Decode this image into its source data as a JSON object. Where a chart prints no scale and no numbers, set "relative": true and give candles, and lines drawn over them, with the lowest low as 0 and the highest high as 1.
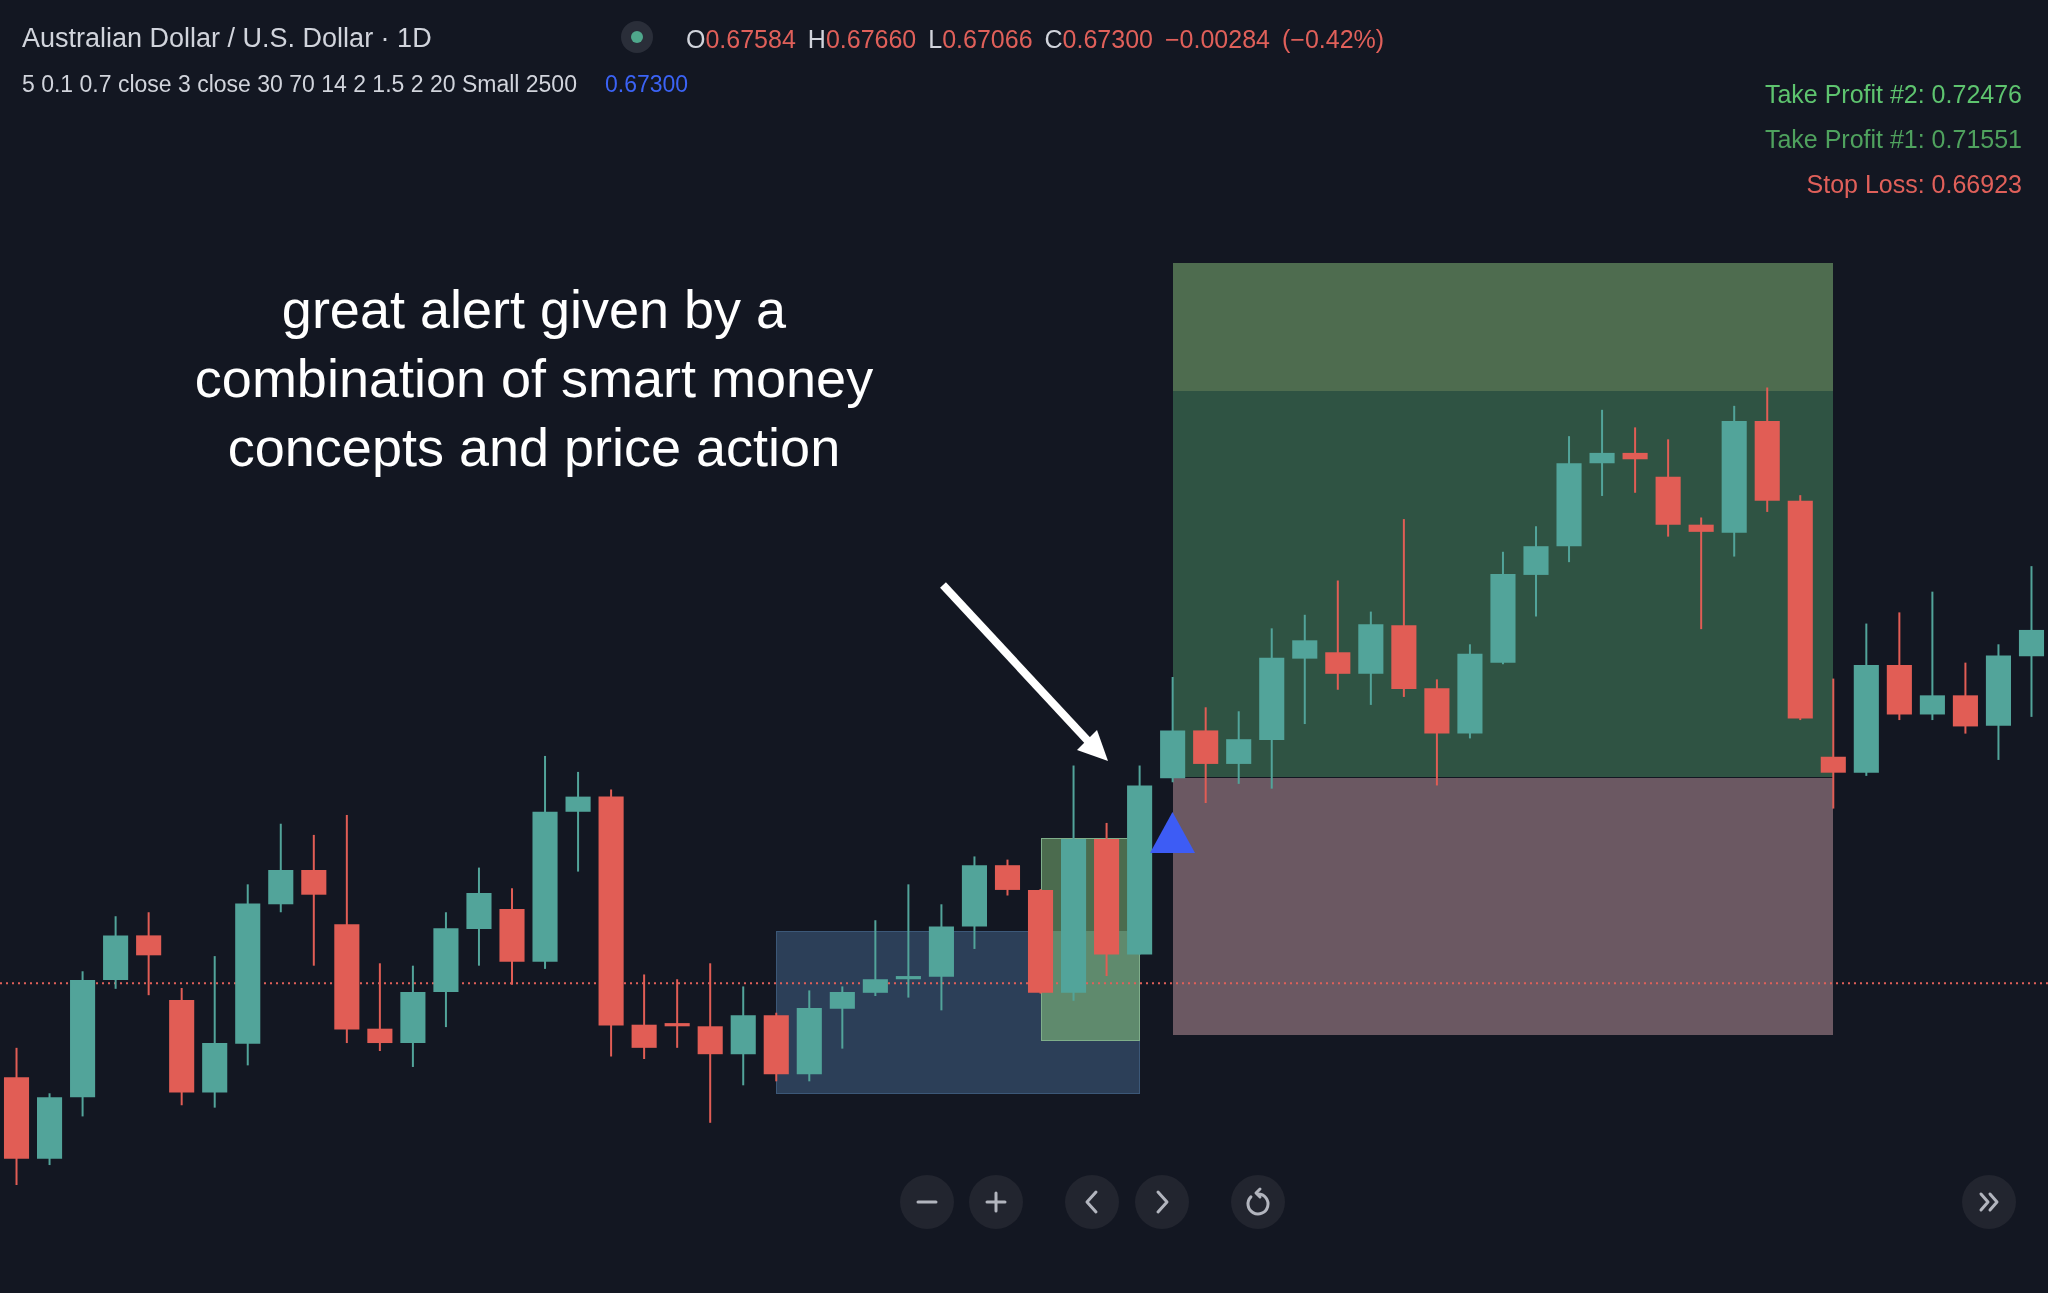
{
  "chart_data": {
    "type": "candlestick",
    "title": "Australian Dollar / U.S. Dollar · 1D",
    "annotations": [
      "O0.67584 H0.67660 L0.67066 C0.67300 −0.00284 (−0.42%)",
      "5 0.1 0.7 close 3 close 30 70 14 2 1.5 2 20 Small 2500",
      "0.67300",
      "Take Profit #2: 0.72476",
      "Take Profit #1: 0.71551",
      "Stop Loss: 0.66923",
      "great alert given by a\ncombination of smart money\nconcepts and price action"
    ],
    "categories": [
      null,
      null,
      null,
      null,
      null,
      null,
      null,
      null,
      null,
      null,
      null,
      null,
      null,
      null,
      null,
      null,
      null,
      null,
      null,
      null,
      null,
      null,
      null,
      null,
      null,
      null,
      null,
      null,
      null,
      null,
      null,
      null,
      null,
      null,
      null,
      null,
      null,
      null,
      null,
      null,
      null,
      null,
      null,
      null,
      null,
      null,
      null,
      null,
      null,
      null,
      null,
      null,
      null,
      null,
      null,
      null,
      null,
      null,
      null,
      null,
      null,
      null
    ],
    "ohlc": [
      [
        0.135,
        0.172,
        0.0,
        0.033
      ],
      [
        0.033,
        0.115,
        0.025,
        0.11
      ],
      [
        0.11,
        0.268,
        0.086,
        0.257
      ],
      [
        0.257,
        0.337,
        0.246,
        0.313
      ],
      [
        0.313,
        0.342,
        0.238,
        0.288
      ],
      [
        0.232,
        0.247,
        0.1,
        0.116
      ],
      [
        0.116,
        0.287,
        0.097,
        0.178
      ],
      [
        0.177,
        0.377,
        0.15,
        0.353
      ],
      [
        0.352,
        0.453,
        0.342,
        0.395
      ],
      [
        0.395,
        0.439,
        0.275,
        0.364
      ],
      [
        0.327,
        0.464,
        0.178,
        0.195
      ],
      [
        0.196,
        0.278,
        0.168,
        0.178
      ],
      [
        0.178,
        0.275,
        0.148,
        0.242
      ],
      [
        0.242,
        0.342,
        0.198,
        0.322
      ],
      [
        0.321,
        0.398,
        0.275,
        0.366
      ],
      [
        0.346,
        0.372,
        0.251,
        0.28
      ],
      [
        0.28,
        0.538,
        0.271,
        0.468
      ],
      [
        0.468,
        0.518,
        0.393,
        0.487
      ],
      [
        0.487,
        0.496,
        0.161,
        0.2
      ],
      [
        0.201,
        0.264,
        0.158,
        0.172
      ],
      [
        0.203,
        0.258,
        0.172,
        0.199
      ],
      [
        0.199,
        0.278,
        0.078,
        0.164
      ],
      [
        0.164,
        0.249,
        0.125,
        0.213
      ],
      [
        0.213,
        0.216,
        0.13,
        0.139
      ],
      [
        0.139,
        0.244,
        0.13,
        0.222
      ],
      [
        0.221,
        0.249,
        0.171,
        0.242
      ],
      [
        0.241,
        0.332,
        0.237,
        0.258
      ],
      [
        0.258,
        0.377,
        0.235,
        0.262
      ],
      [
        0.261,
        0.352,
        0.219,
        0.324
      ],
      [
        0.324,
        0.412,
        0.296,
        0.401
      ],
      [
        0.401,
        0.408,
        0.363,
        0.37
      ],
      [
        0.37,
        0.371,
        0.24,
        0.241
      ],
      [
        0.241,
        0.526,
        0.231,
        0.434
      ],
      [
        0.434,
        0.454,
        0.262,
        0.289
      ],
      [
        0.289,
        0.526,
        0.289,
        0.501
      ],
      [
        0.51,
        0.637,
        0.505,
        0.57
      ],
      [
        0.57,
        0.599,
        0.479,
        0.528
      ],
      [
        0.528,
        0.594,
        0.503,
        0.559
      ],
      [
        0.558,
        0.698,
        0.497,
        0.661
      ],
      [
        0.66,
        0.715,
        0.578,
        0.683
      ],
      [
        0.668,
        0.758,
        0.621,
        0.641
      ],
      [
        0.641,
        0.719,
        0.602,
        0.703
      ],
      [
        0.702,
        0.835,
        0.612,
        0.622
      ],
      [
        0.623,
        0.634,
        0.501,
        0.566
      ],
      [
        0.566,
        0.678,
        0.56,
        0.666
      ],
      [
        0.655,
        0.794,
        0.653,
        0.766
      ],
      [
        0.765,
        0.826,
        0.713,
        0.801
      ],
      [
        0.801,
        0.939,
        0.781,
        0.905
      ],
      [
        0.905,
        0.972,
        0.864,
        0.918
      ],
      [
        0.918,
        0.95,
        0.868,
        0.91
      ],
      [
        0.888,
        0.935,
        0.813,
        0.828
      ],
      [
        0.828,
        0.837,
        0.697,
        0.819
      ],
      [
        0.818,
        0.977,
        0.788,
        0.958
      ],
      [
        0.958,
        1.0,
        0.844,
        0.858
      ],
      [
        0.858,
        0.865,
        0.583,
        0.585
      ],
      [
        0.537,
        0.635,
        0.472,
        0.517
      ],
      [
        0.517,
        0.704,
        0.513,
        0.652
      ],
      [
        0.652,
        0.718,
        0.583,
        0.59
      ],
      [
        0.59,
        0.744,
        0.583,
        0.614
      ],
      [
        0.614,
        0.655,
        0.566,
        0.575
      ],
      [
        0.576,
        0.678,
        0.533,
        0.664
      ],
      [
        0.663,
        0.776,
        0.587,
        0.696
      ]
    ],
    "colors": [
      "#e15d55",
      "#52a49a",
      "#52a49a",
      "#52a49a",
      "#e15d55",
      "#e15d55",
      "#52a49a",
      "#52a49a",
      "#52a49a",
      "#e15d55",
      "#e15d55",
      "#e15d55",
      "#52a49a",
      "#52a49a",
      "#52a49a",
      "#e15d55",
      "#52a49a",
      "#52a49a",
      "#e15d55",
      "#e15d55",
      "#e15d55",
      "#e15d55",
      "#52a49a",
      "#e15d55",
      "#52a49a",
      "#52a49a",
      "#52a49a",
      "#52a49a",
      "#52a49a",
      "#52a49a",
      "#e15d55",
      "#e15d55",
      "#52a49a",
      "#e15d55",
      "#52a49a",
      "#52a49a",
      "#e15d55",
      "#52a49a",
      "#52a49a",
      "#52a49a",
      "#e15d55",
      "#52a49a",
      "#e15d55",
      "#e15d55",
      "#52a49a",
      "#52a49a",
      "#52a49a",
      "#52a49a",
      "#52a49a",
      "#e15d55",
      "#e15d55",
      "#e15d55",
      "#52a49a",
      "#e15d55",
      "#e15d55",
      "#e15d55",
      "#52a49a",
      "#e15d55",
      "#52a49a",
      "#e15d55",
      "#52a49a",
      "#52a49a"
    ],
    "relative": true,
    "ref_lines": [
      {
        "axis": "y",
        "value": 0.253,
        "color": "#e0605a",
        "line_style": "dotted"
      }
    ],
    "tick_labels": false
  }
}
